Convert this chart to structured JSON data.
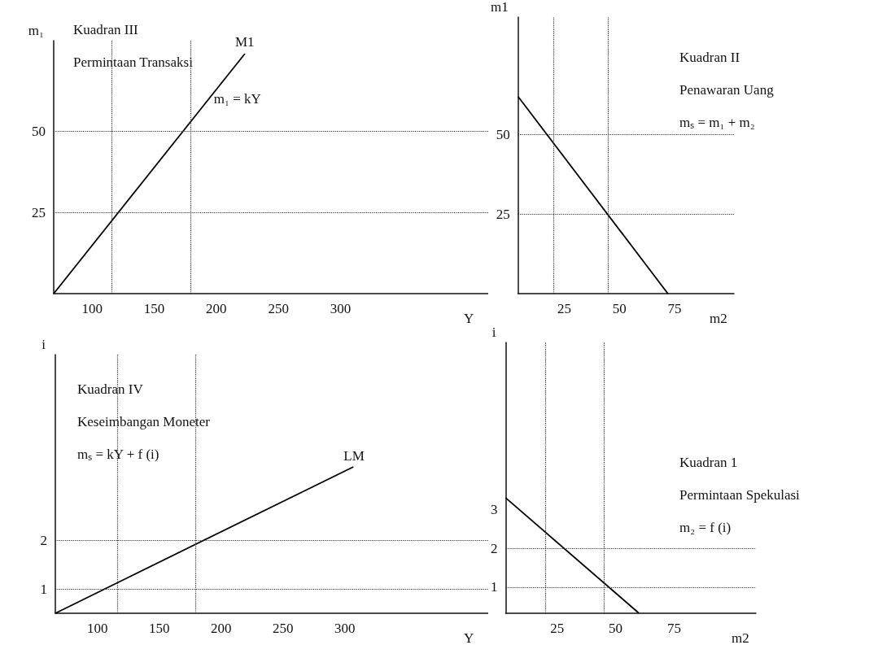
{
  "chart_data": [
    {
      "type": "line",
      "title": "Kuadran III",
      "subtitle": "Permintaan Transaksi",
      "xlabel": "Y",
      "ylabel": "m₁",
      "marker": "none",
      "x": [
        69,
        223
      ],
      "series": [
        {
          "name": "M1",
          "color": "#000000",
          "values": [
            0,
            74
          ]
        }
      ],
      "xlim": [
        69,
        419
      ],
      "ylim": [
        0,
        78
      ],
      "xticks": [
        100,
        150,
        200,
        250,
        300
      ],
      "yticks": [
        25,
        50
      ],
      "ref_lines": [
        {
          "axis": "y",
          "value": 50
        },
        {
          "axis": "y",
          "value": 25
        },
        {
          "axis": "x",
          "value": 116
        },
        {
          "axis": "x",
          "value": 179
        }
      ],
      "annotations": [
        {
          "text": "m₁ = kY",
          "x": 198,
          "y": 60
        }
      ]
    },
    {
      "type": "line",
      "title": "Kuadran II",
      "subtitle": "Penawaran Uang",
      "xlabel": "m2",
      "ylabel": "m1",
      "marker": "none",
      "x": [
        4,
        72
      ],
      "series": [
        {
          "color": "#000000",
          "values": [
            62,
            0
          ]
        }
      ],
      "xlim": [
        4,
        102
      ],
      "ylim": [
        0,
        87
      ],
      "xticks": [
        25,
        50,
        75
      ],
      "yticks": [
        25,
        50
      ],
      "ref_lines": [
        {
          "axis": "y",
          "value": 50
        },
        {
          "axis": "y",
          "value": 25
        },
        {
          "axis": "x",
          "value": 20
        },
        {
          "axis": "x",
          "value": 45
        }
      ],
      "annotations": [
        "mₛ = m₁ + m₂"
      ]
    },
    {
      "type": "line",
      "title": "Kuadran IV",
      "subtitle": "Keseimbangan Moneter",
      "xlabel": "Y",
      "ylabel": "i",
      "marker": "none",
      "x": [
        66,
        307
      ],
      "series": [
        {
          "name": "LM",
          "color": "#000000",
          "values": [
            0.5,
            3.5
          ]
        }
      ],
      "xlim": [
        66,
        416
      ],
      "ylim": [
        0.5,
        5.8
      ],
      "xticks": [
        100,
        150,
        200,
        250,
        300
      ],
      "yticks": [
        1,
        2
      ],
      "ref_lines": [
        {
          "axis": "y",
          "value": 2
        },
        {
          "axis": "y",
          "value": 1
        },
        {
          "axis": "x",
          "value": 116
        },
        {
          "axis": "x",
          "value": 179
        }
      ],
      "annotations": [
        "mₛ = kY + f (i)"
      ]
    },
    {
      "type": "line",
      "title": "Kuadran 1",
      "subtitle": "Permintaan Spekulasi",
      "xlabel": "m2",
      "ylabel": "i",
      "marker": "none",
      "x": [
        3,
        60
      ],
      "series": [
        {
          "color": "#000000",
          "values": [
            3.3,
            0.33
          ]
        }
      ],
      "xlim": [
        3,
        110
      ],
      "ylim": [
        0.33,
        7.3
      ],
      "xticks": [
        25,
        50,
        75
      ],
      "yticks": [
        1,
        2,
        3
      ],
      "ref_lines": [
        {
          "axis": "y",
          "value": 2
        },
        {
          "axis": "y",
          "value": 1
        },
        {
          "axis": "x",
          "value": 20
        },
        {
          "axis": "x",
          "value": 45
        }
      ],
      "annotations": [
        "m₂ = f (i)"
      ]
    }
  ]
}
